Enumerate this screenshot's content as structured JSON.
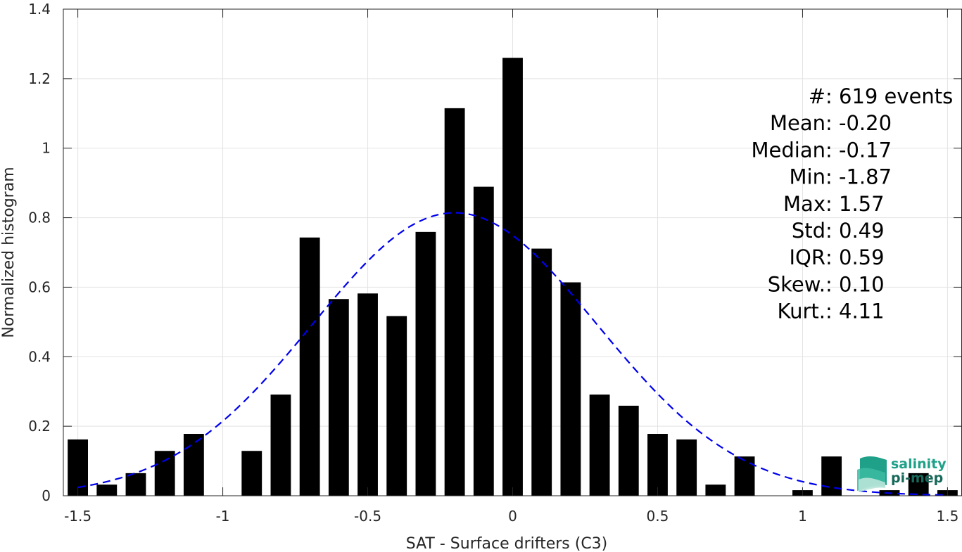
{
  "chart_data": {
    "type": "bar",
    "xlabel": "SAT - Surface drifters (C3)",
    "ylabel": "Normalized histogram",
    "xlim": [
      -1.55,
      1.55
    ],
    "ylim": [
      0,
      1.4
    ],
    "xticks": [
      -1.5,
      -1,
      -0.5,
      0,
      0.5,
      1,
      1.5
    ],
    "xtick_labels": [
      "-1.5",
      "-1",
      "-0.5",
      "0",
      "0.5",
      "1",
      "1.5"
    ],
    "yticks": [
      0,
      0.2,
      0.4,
      0.6,
      0.8,
      1,
      1.2,
      1.4
    ],
    "ytick_labels": [
      "0",
      "0.2",
      "0.4",
      "0.6",
      "0.8",
      "1",
      "1.2",
      "1.4"
    ],
    "grid": true,
    "bar_color": "#000000",
    "bin_width": 0.1,
    "bar_fraction": 0.7,
    "bins": [
      -1.5,
      -1.4,
      -1.3,
      -1.2,
      -1.1,
      -1.0,
      -0.9,
      -0.8,
      -0.7,
      -0.6,
      -0.5,
      -0.4,
      -0.3,
      -0.2,
      -0.1,
      0.0,
      0.1,
      0.2,
      0.3,
      0.4,
      0.5,
      0.6,
      0.7,
      0.8,
      0.9,
      1.0,
      1.1,
      1.2,
      1.3,
      1.4,
      1.5
    ],
    "values": [
      0.162,
      0.032,
      0.065,
      0.129,
      0.178,
      0,
      0.129,
      0.291,
      0.743,
      0.566,
      0.582,
      0.517,
      0.759,
      1.115,
      0.889,
      1.26,
      0.711,
      0.614,
      0.291,
      0.259,
      0.178,
      0.162,
      0.032,
      0.113,
      0,
      0.016,
      0.113,
      0,
      0.016,
      0.065,
      0.016
    ],
    "fit": {
      "type": "normal",
      "mean": -0.2,
      "std": 0.49,
      "color": "#0000ee",
      "style": "dashed",
      "x_range": [
        -1.5,
        1.5
      ]
    },
    "stats": [
      {
        "label": "#  ",
        "value": ": 619 events"
      },
      {
        "label": "Mean ",
        "value": ": -0.20"
      },
      {
        "label": "Median ",
        "value": ": -0.17"
      },
      {
        "label": "Min ",
        "value": ": -1.87"
      },
      {
        "label": "Max ",
        "value": ": 1.57"
      },
      {
        "label": "Std ",
        "value": ": 0.49"
      },
      {
        "label": "IQR ",
        "value": ": 0.59"
      },
      {
        "label": "Skew. ",
        "value": ": 0.10"
      },
      {
        "label": "Kurt. ",
        "value": ": 4.11"
      }
    ]
  },
  "logo": {
    "line1": "salinity",
    "line2": "pi-mep",
    "color1": "#1fa088",
    "color2": "#16685a"
  }
}
